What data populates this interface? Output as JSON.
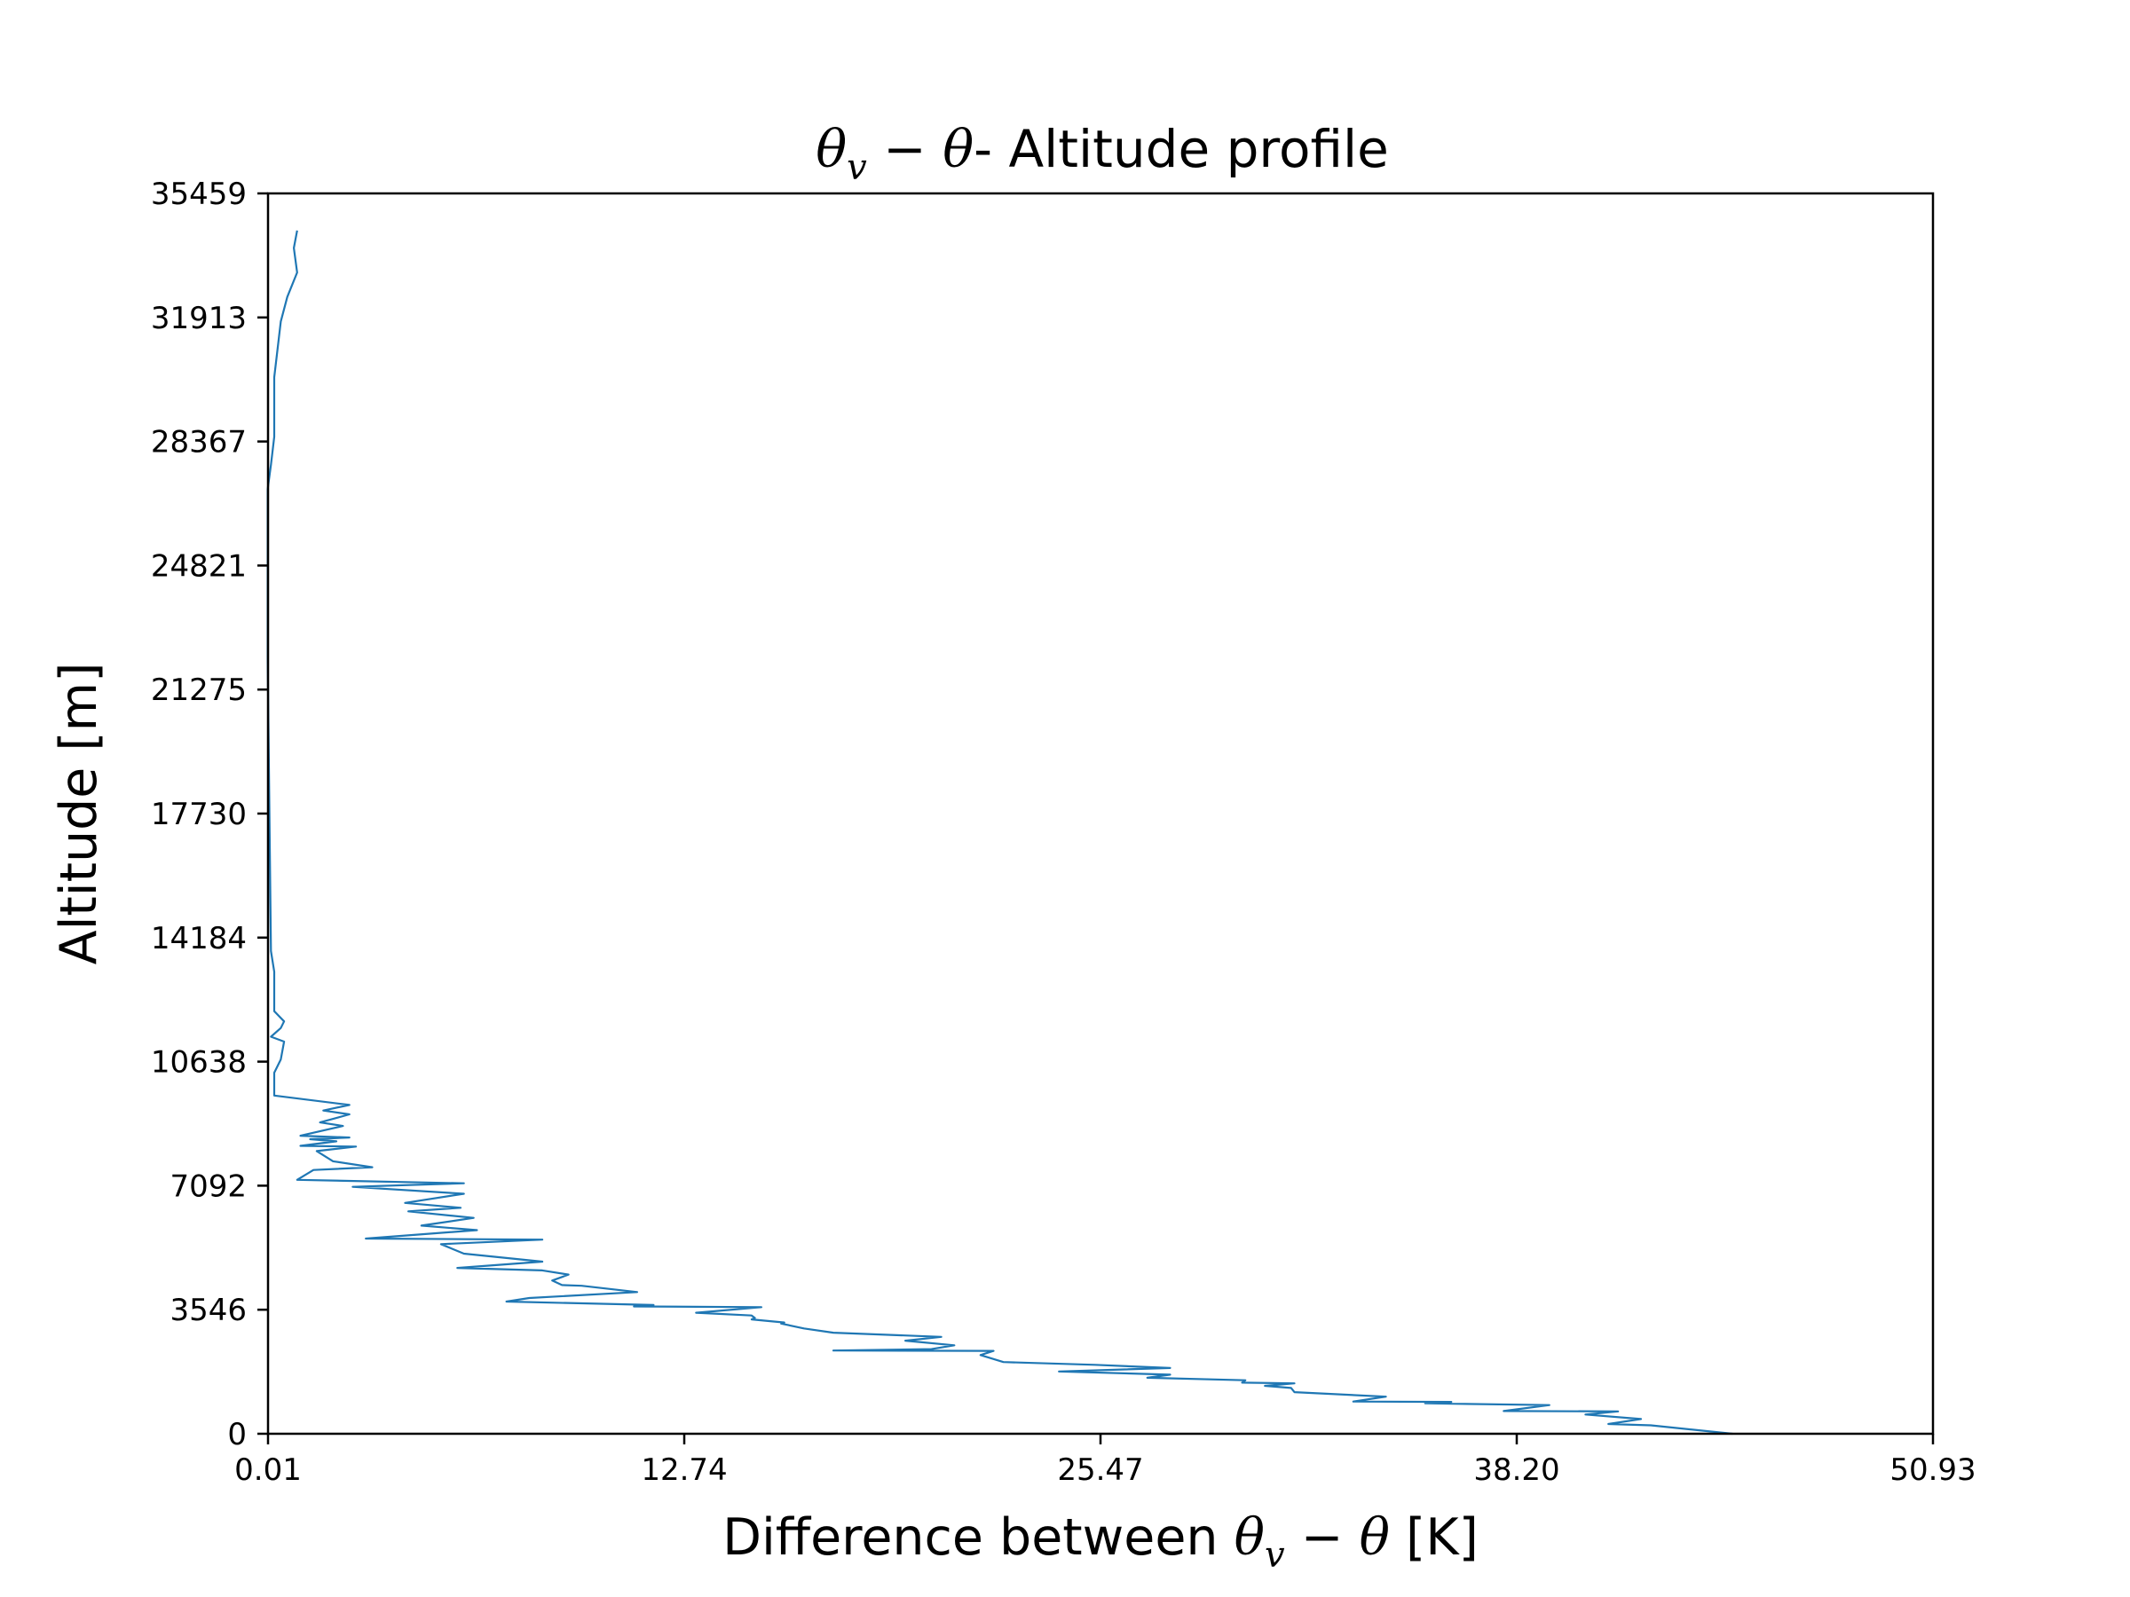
{
  "chart_data": {
    "type": "line",
    "title": {
      "theta": "θ",
      "sub": "v",
      "minus": " − ",
      "theta2": "θ",
      "rest": "- Altitude profile"
    },
    "xlabel": {
      "prefix": "Difference between ",
      "theta": "θ",
      "sub": "v",
      "minus": " − ",
      "theta2": "θ",
      "suffix": " [K]"
    },
    "ylabel": "Altitude [m]",
    "xlim": [
      0.01,
      50.93
    ],
    "ylim": [
      0,
      35459
    ],
    "xticks": [
      "0.01",
      "12.74",
      "25.47",
      "38.20",
      "50.93"
    ],
    "yticks": [
      "0",
      "3546",
      "7092",
      "10638",
      "14184",
      "17730",
      "21275",
      "24821",
      "28367",
      "31913",
      "35459"
    ],
    "grid": false,
    "legend": "none",
    "line_color": "#1f77b4",
    "series": [
      {
        "x": [
          44.8,
          42.3,
          41.0,
          42.0,
          40.3,
          41.3,
          37.8,
          39.2,
          35.4,
          36.2,
          33.2,
          34.2,
          31.4,
          31.3,
          30.5,
          31.4,
          29.8,
          29.9,
          26.9,
          27.6,
          24.2,
          27.6,
          25.3,
          22.5,
          21.8,
          22.2,
          17.3,
          20.3,
          21.0,
          19.5,
          20.6,
          17.3,
          16.4,
          15.7,
          15.8,
          14.8,
          14.9,
          14.8,
          13.1,
          15.1,
          11.2,
          11.8,
          7.3,
          8.0,
          11.3,
          9.6,
          9.0,
          8.7,
          9.2,
          8.4,
          5.8,
          8.4,
          6.0,
          5.3,
          8.4,
          3.0,
          6.4,
          4.7,
          6.3,
          4.3,
          5.9,
          4.2,
          6.0,
          2.6,
          6.0,
          0.9,
          1.4,
          3.2,
          2.0,
          1.5,
          2.7,
          1.0,
          2.1,
          1.3,
          2.5,
          1.0,
          2.3,
          1.6,
          2.5,
          1.7,
          2.5,
          0.2,
          0.2,
          0.4,
          0.5,
          0.1,
          0.4,
          0.5,
          0.2,
          0.2,
          0.1,
          0.0,
          0.0,
          0.0,
          0.1,
          0.2,
          0.2,
          0.3,
          0.4,
          0.6,
          0.9,
          0.8,
          0.9
        ],
        "y": [
          0,
          240,
          280,
          420,
          550,
          640,
          650,
          820,
          870,
          910,
          920,
          1060,
          1190,
          1310,
          1370,
          1440,
          1460,
          1530,
          1600,
          1690,
          1780,
          1880,
          1970,
          2050,
          2250,
          2370,
          2380,
          2420,
          2530,
          2660,
          2770,
          2890,
          3010,
          3150,
          3180,
          3270,
          3310,
          3380,
          3460,
          3620,
          3640,
          3680,
          3780,
          3880,
          4050,
          4230,
          4250,
          4380,
          4550,
          4670,
          4740,
          4920,
          5150,
          5420,
          5550,
          5580,
          5820,
          5950,
          6170,
          6360,
          6460,
          6600,
          6860,
          7060,
          7160,
          7260,
          7540,
          7620,
          7790,
          8080,
          8210,
          8230,
          8360,
          8420,
          8470,
          8520,
          8800,
          8900,
          9130,
          9240,
          9400,
          9670,
          10320,
          10700,
          11210,
          11350,
          11600,
          11790,
          12080,
          13210,
          13800,
          22200,
          25500,
          27000,
          27700,
          28500,
          30200,
          31000,
          31800,
          32500,
          33200,
          33900,
          34400
        ]
      }
    ]
  }
}
